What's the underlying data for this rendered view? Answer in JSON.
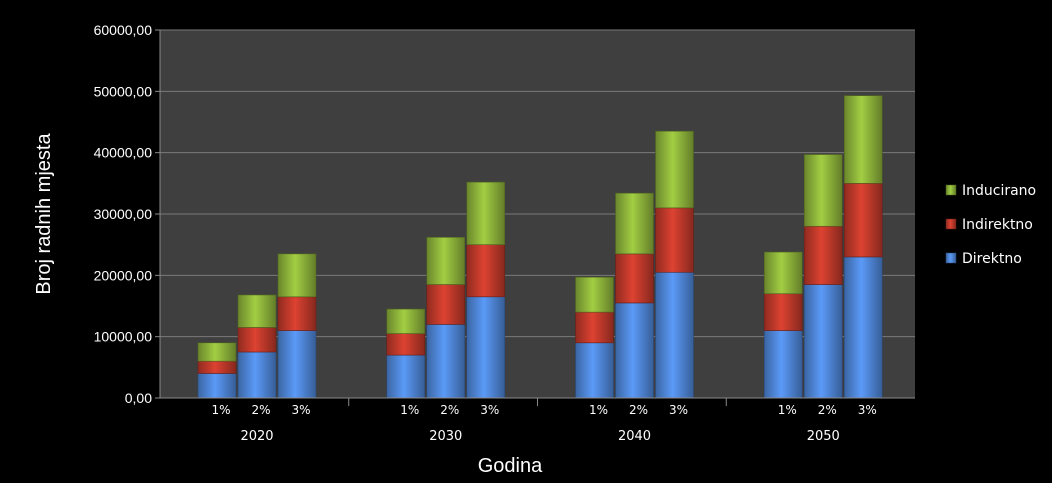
{
  "chart_data": {
    "type": "bar",
    "stacked": true,
    "xlabel": "Godina",
    "ylabel": "Broj radnih mjesta",
    "ylim": [
      0,
      60000
    ],
    "yticks": [
      "0,00",
      "10000,00",
      "20000,00",
      "30000,00",
      "40000,00",
      "50000,00",
      "60000,00"
    ],
    "grid": true,
    "legend_position": "right",
    "groups": [
      "2020",
      "2030",
      "2040",
      "2050"
    ],
    "subcategories": [
      "1%",
      "2%",
      "3%"
    ],
    "series": [
      {
        "name": "Direktno",
        "color": "#4f86d8",
        "values": [
          [
            4000,
            7500,
            11000
          ],
          [
            7000,
            12000,
            16500
          ],
          [
            9000,
            15500,
            20500
          ],
          [
            11000,
            18500,
            23000
          ]
        ]
      },
      {
        "name": "Indirektno",
        "color": "#c0392b",
        "values": [
          [
            2000,
            4000,
            5500
          ],
          [
            3500,
            6500,
            8500
          ],
          [
            5000,
            8000,
            10500
          ],
          [
            6000,
            9500,
            12000
          ]
        ]
      },
      {
        "name": "Inducirano",
        "color": "#8db33a",
        "values": [
          [
            3000,
            5300,
            7000
          ],
          [
            4000,
            7700,
            10200
          ],
          [
            5700,
            9900,
            12500
          ],
          [
            6800,
            11700,
            14300
          ]
        ]
      }
    ],
    "legend_order": [
      "Inducirano",
      "Indirektno",
      "Direktno"
    ]
  }
}
